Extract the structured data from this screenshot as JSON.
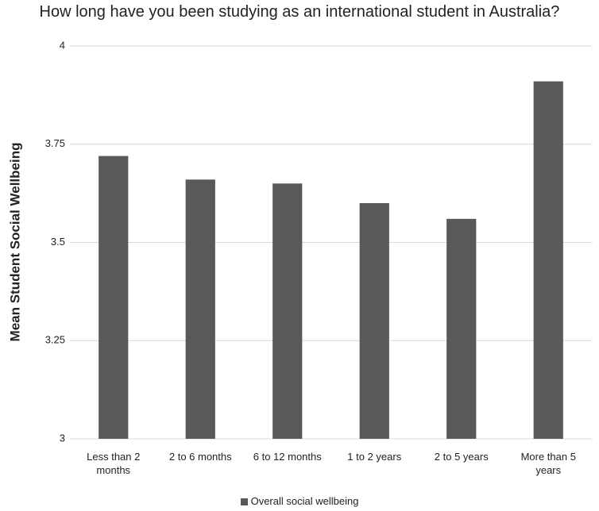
{
  "chart_data": {
    "type": "bar",
    "title": "How long have you been studying as an international student in Australia?",
    "y_label": "Mean Student Social Wellbeing",
    "categories": [
      "Less than 2 months",
      "2 to 6 months",
      "6 to 12 months",
      "1 to 2 years",
      "2 to 5 years",
      "More than 5 years"
    ],
    "series": [
      {
        "name": "Overall social wellbeing",
        "color": "#595959",
        "values": [
          3.72,
          3.66,
          3.65,
          3.6,
          3.56,
          3.91
        ]
      }
    ],
    "ylim": [
      3,
      4
    ],
    "yticks": [
      3,
      3.25,
      3.5,
      3.75,
      4
    ],
    "grid": true,
    "legend": "bottom"
  }
}
